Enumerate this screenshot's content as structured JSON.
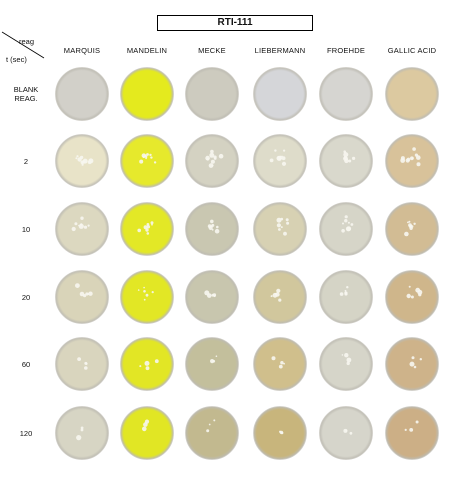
{
  "title": "RTI-111",
  "corner": {
    "reagent_label": "reag",
    "time_label": "t (sec)"
  },
  "columns": [
    "MARQUIS",
    "MANDELIN",
    "MECKE",
    "LIEBERMANN",
    "FROEHDE",
    "GALLIC ACID"
  ],
  "rows": [
    {
      "label_lines": [
        "BLANK",
        "REAG."
      ]
    },
    {
      "label_lines": [
        "2"
      ]
    },
    {
      "label_lines": [
        "10"
      ]
    },
    {
      "label_lines": [
        "20"
      ]
    },
    {
      "label_lines": [
        "60"
      ]
    },
    {
      "label_lines": [
        "120"
      ]
    }
  ],
  "well_colors": [
    [
      "#d2d0c9",
      "#e4ea1e",
      "#cdcbbf",
      "#d5d6d9",
      "#d6d5d1",
      "#dcc9a0"
    ],
    [
      "#e8e3c8",
      "#e6e92c",
      "#d4d2c2",
      "#dedcca",
      "#d9d8cc",
      "#d8c29a"
    ],
    [
      "#dcd8c0",
      "#e3e826",
      "#c9c7b1",
      "#d7d1b3",
      "#d6d5c8",
      "#d2bc94"
    ],
    [
      "#d9d4b9",
      "#e2e725",
      "#c8c6ae",
      "#d1c79d",
      "#d5d4c6",
      "#cfb68b"
    ],
    [
      "#d9d5be",
      "#e2e625",
      "#c3bf9c",
      "#d0bf8c",
      "#d6d5c9",
      "#ceb38a"
    ],
    [
      "#d7d5c4",
      "#e1e624",
      "#c2b98f",
      "#c8b57c",
      "#d6d5cb",
      "#ccaf86"
    ]
  ]
}
